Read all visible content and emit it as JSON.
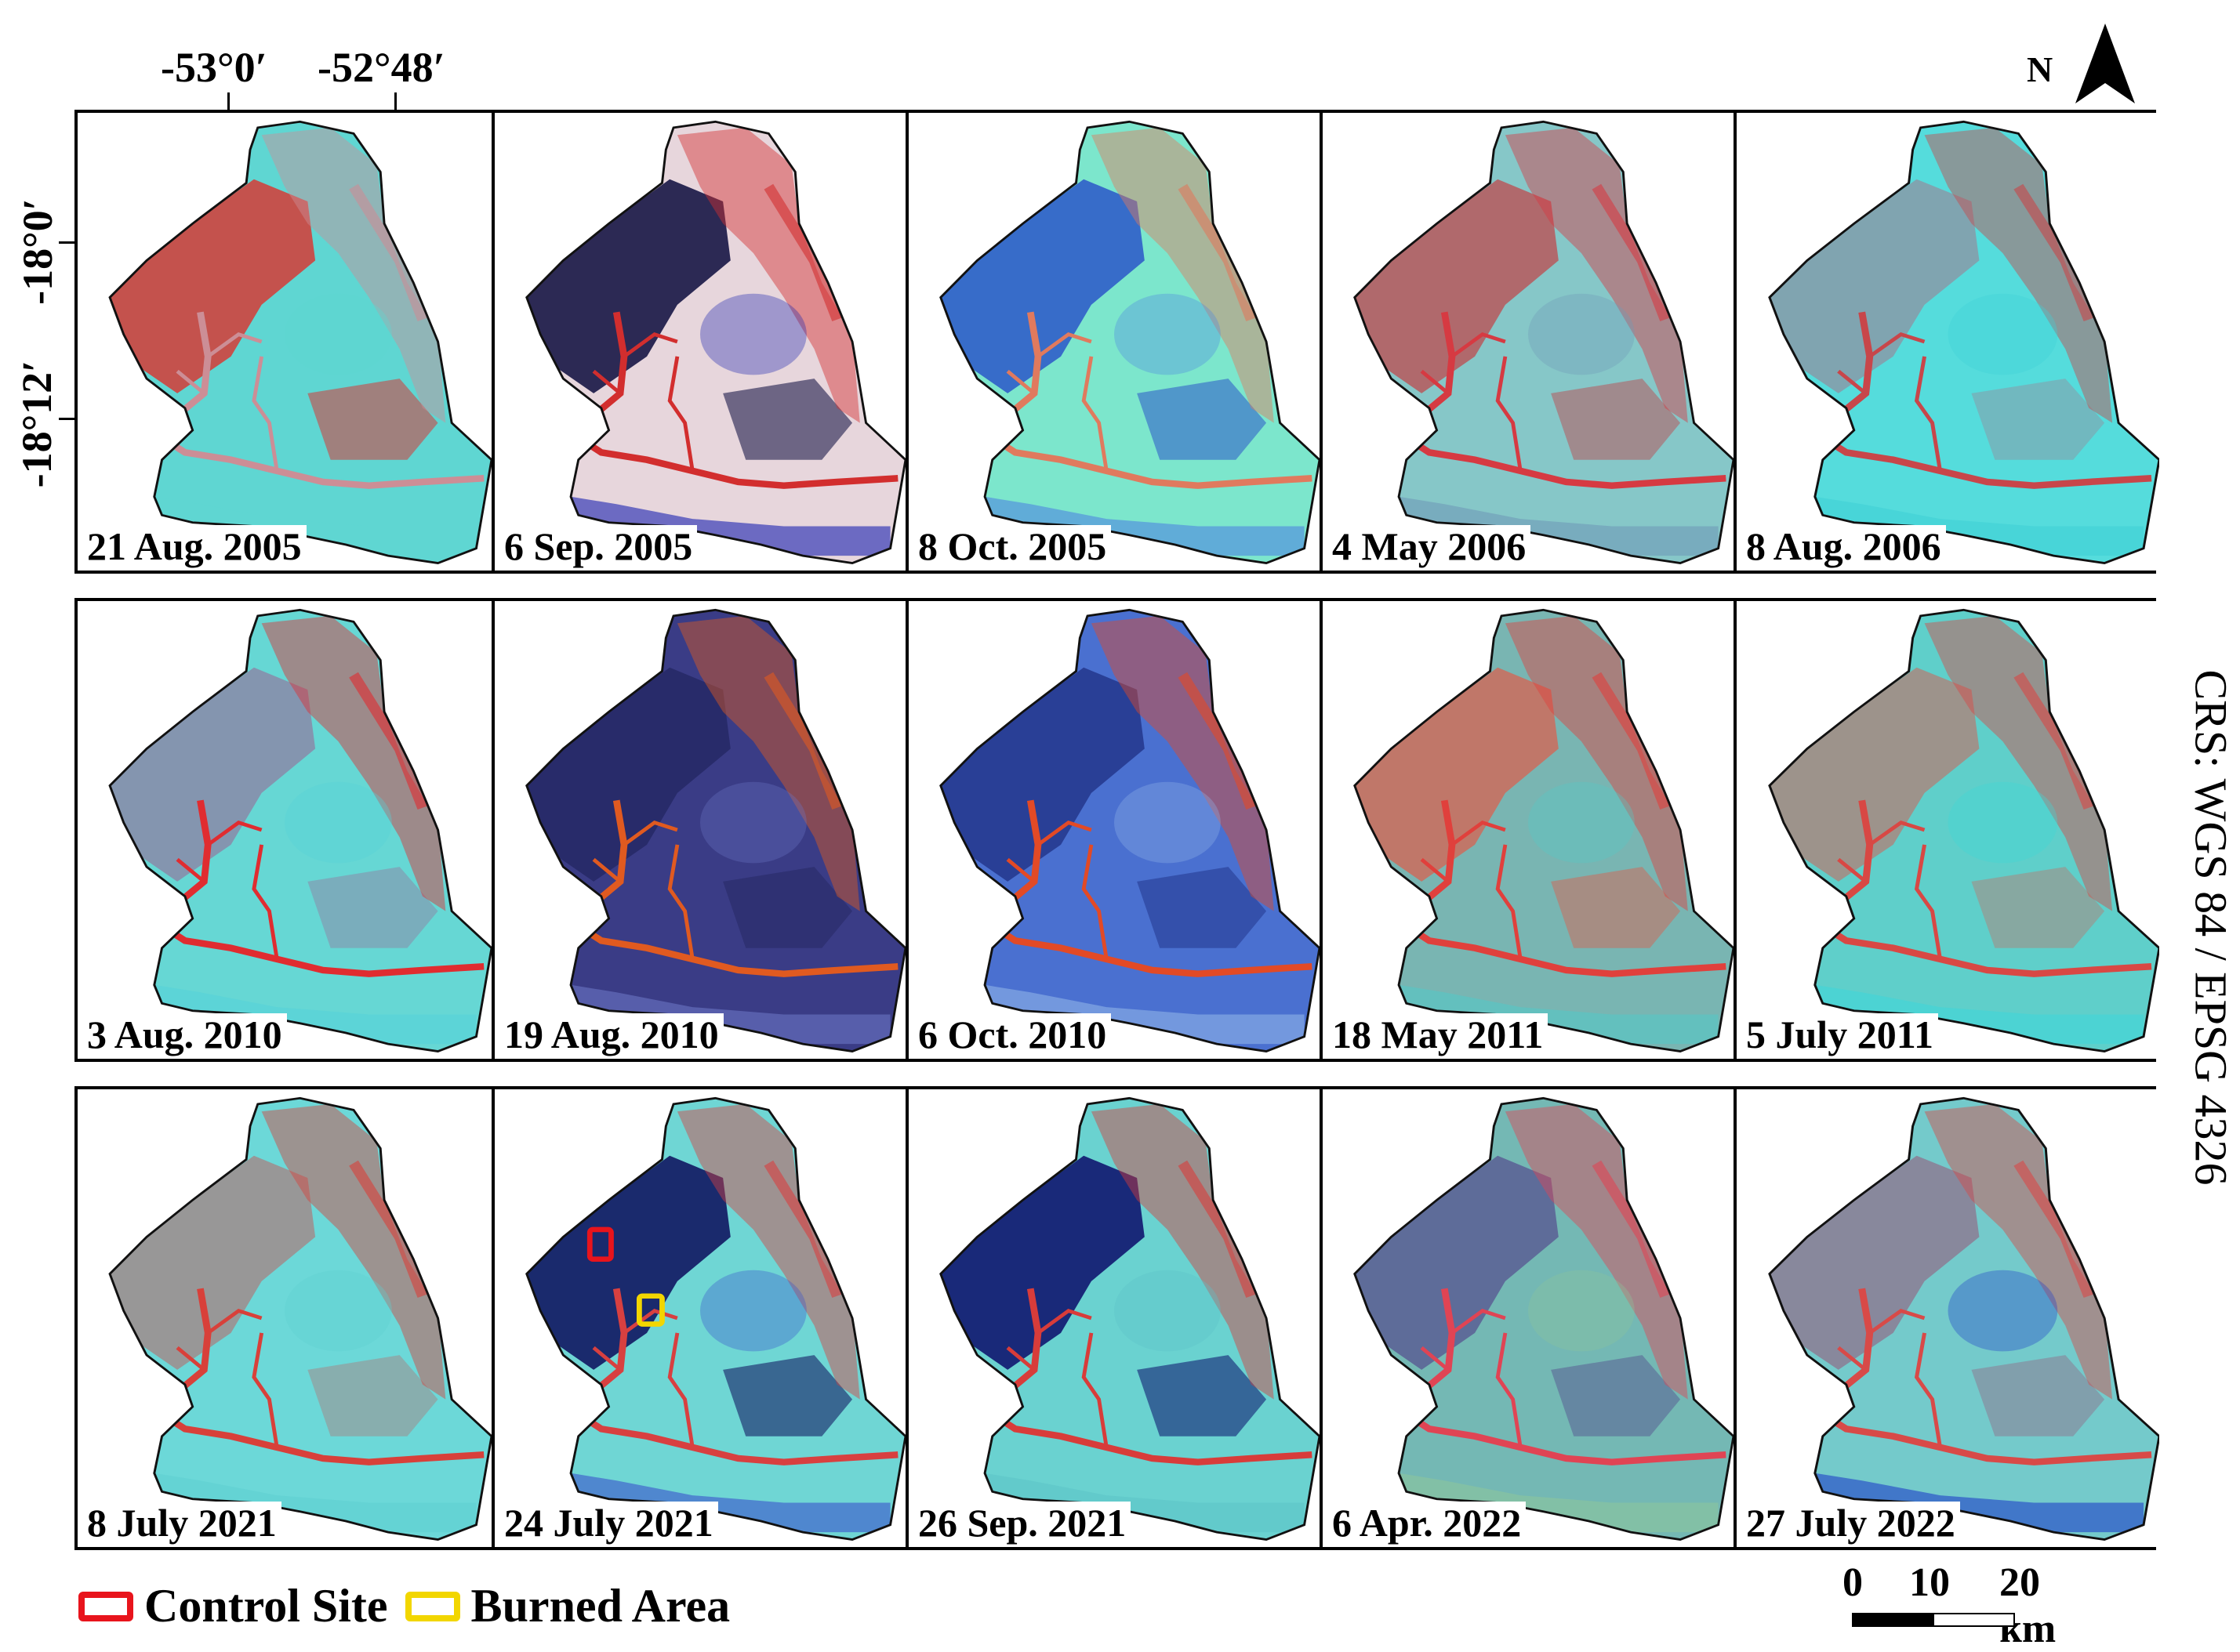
{
  "coordinates": {
    "lon_labels": [
      "-53°0′",
      "-52°48′"
    ],
    "lat_labels": [
      "-18°0′",
      "-18°12′"
    ]
  },
  "north_arrow": {
    "label": "N",
    "icon": "north-arrow-icon"
  },
  "crs": "CRS: WGS 84 / EPSG 4326",
  "scale_bar": {
    "ticks": [
      "0",
      "10",
      "20 km"
    ]
  },
  "legend": [
    {
      "label": "Control Site",
      "color": "#e8141c"
    },
    {
      "label": "Burned Area",
      "color": "#f2d600"
    }
  ],
  "rows": [
    [
      {
        "date": "21 Aug. 2005",
        "palette": [
          "#5fd6d2",
          "#d63b36",
          "#cc8e96",
          "#5fd6d2"
        ]
      },
      {
        "date": "6 Sep. 2005",
        "palette": [
          "#e7d6dc",
          "#0a0a3c",
          "#d22e2e",
          "#1a22b0"
        ]
      },
      {
        "date": "8 Oct. 2005",
        "palette": [
          "#7ce6cc",
          "#2c56c8",
          "#e07a5e",
          "#4f86e0"
        ]
      },
      {
        "date": "4 May 2006",
        "palette": [
          "#86c7c8",
          "#b7585c",
          "#d63a42",
          "#6f9ab8"
        ]
      },
      {
        "date": "8 Aug. 2006",
        "palette": [
          "#55dcdc",
          "#889aa8",
          "#c8464a",
          "#3fd0d6"
        ]
      }
    ],
    [
      {
        "date": "3 Aug. 2010",
        "palette": [
          "#66d7d4",
          "#8a8aa8",
          "#e02c30",
          "#55d2d8"
        ]
      },
      {
        "date": "19 Aug. 2010",
        "palette": [
          "#3a3c86",
          "#262865",
          "#e05a20",
          "#6b74c4"
        ]
      },
      {
        "date": "6 Oct. 2010",
        "palette": [
          "#4a70d0",
          "#23368c",
          "#e24a26",
          "#8fb2e8"
        ]
      },
      {
        "date": "18 May 2011",
        "palette": [
          "#79b5b2",
          "#cc6c5c",
          "#e0403c",
          "#55c8c6"
        ]
      },
      {
        "date": "5 July 2011",
        "palette": [
          "#5fcfca",
          "#a88880",
          "#d84844",
          "#3fd6d8"
        ]
      }
    ],
    [
      {
        "date": "8 July 2021",
        "palette": [
          "#6cd8d8",
          "#a08c8c",
          "#d8403a",
          "#5fd0d2"
        ]
      },
      {
        "date": "24 July 2021",
        "palette": [
          "#6fd6d4",
          "#0c0c5a",
          "#d84040",
          "#3a52cc"
        ]
      },
      {
        "date": "26 Sep. 2021",
        "palette": [
          "#6ad2d0",
          "#0a0c6a",
          "#d83c3a",
          "#5dc4c8"
        ]
      },
      {
        "date": "6 Apr. 2022",
        "palette": [
          "#74b8b4",
          "#5a5e94",
          "#e04454",
          "#8cc49c"
        ]
      },
      {
        "date": "27 July 2022",
        "palette": [
          "#74cacb",
          "#8c7c94",
          "#d84a48",
          "#2040c8"
        ]
      }
    ]
  ]
}
